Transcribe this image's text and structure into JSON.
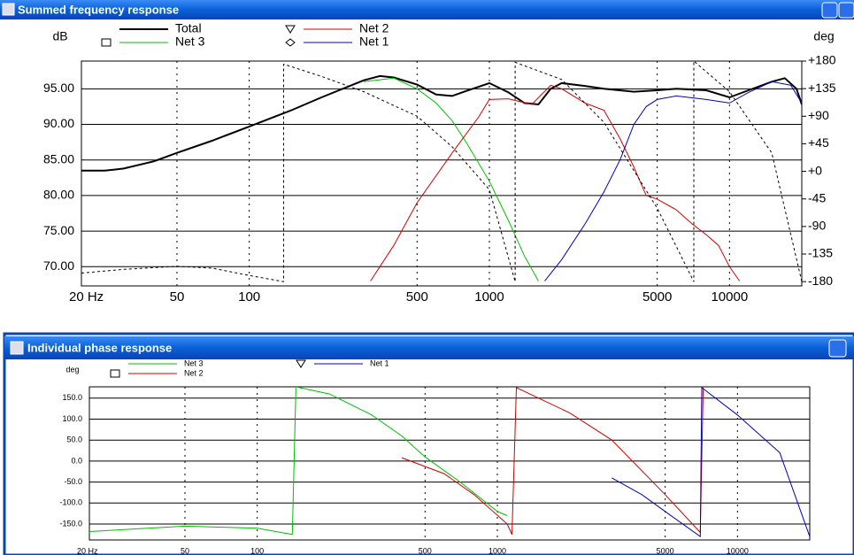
{
  "chart_data": [
    {
      "type": "line",
      "title": "Summed frequency response",
      "y_label": "dB",
      "y2_label": "deg",
      "x_scale": "log",
      "grid": true,
      "xlim": [
        20,
        20000
      ],
      "xticks": [
        {
          "value": 20,
          "label": "20 Hz"
        },
        50,
        100,
        500,
        1000,
        5000,
        10000
      ],
      "ylim": [
        67.3,
        98.9
      ],
      "yticks": [
        {
          "value": 70,
          "label": "70.00"
        },
        {
          "value": 75,
          "label": "75.00"
        },
        {
          "value": 80,
          "label": "80.00"
        },
        {
          "value": 85,
          "label": "85.00"
        },
        {
          "value": 90,
          "label": "90.00"
        },
        {
          "value": 95,
          "label": "95.00"
        }
      ],
      "y2lim": [
        -187,
        180
      ],
      "y2ticks": [
        {
          "value": 180,
          "label": "+180"
        },
        {
          "value": 135,
          "label": "+135"
        },
        {
          "value": 90,
          "label": "+90"
        },
        {
          "value": 45,
          "label": "+45"
        },
        {
          "value": 0,
          "label": "+0"
        },
        -45,
        -90,
        -135,
        -180
      ],
      "series": [
        {
          "name": "Total",
          "color": "#000000",
          "width": 2,
          "x": [
            20,
            25,
            30,
            40,
            50,
            70,
            100,
            150,
            200,
            300,
            350,
            400,
            500,
            600,
            700,
            800,
            1000,
            1200,
            1400,
            1600,
            1800,
            2000,
            2500,
            3000,
            4000,
            5000,
            6000,
            8000,
            10000,
            12000,
            15000,
            17000,
            19000,
            20000
          ],
          "values": [
            83.5,
            83.5,
            83.8,
            84.8,
            86,
            87.7,
            89.7,
            92,
            93.8,
            96.2,
            96.8,
            96.6,
            95.6,
            94.2,
            94,
            94.7,
            95.8,
            94.5,
            93,
            92.8,
            95,
            95.8,
            95.4,
            95,
            94.6,
            94.8,
            95,
            94.8,
            93.8,
            94.8,
            96,
            96.5,
            95,
            92.8
          ]
        },
        {
          "name": "Net 3",
          "color": "#00c000",
          "marker": "square",
          "x": [
            300,
            400,
            500,
            600,
            700,
            800,
            1000,
            1200,
            1400,
            1600
          ],
          "values": [
            96,
            96.5,
            95,
            93,
            90.5,
            87.5,
            82,
            76.5,
            71.5,
            68
          ]
        },
        {
          "name": "Net 2",
          "color": "#d00000",
          "marker": "triangle",
          "x": [
            320,
            400,
            500,
            700,
            900,
            1000,
            1200,
            1500,
            1800,
            2000,
            2500,
            3000,
            3500,
            4000,
            4500,
            5000,
            6000,
            7000,
            8000,
            9000,
            10000,
            11000
          ],
          "values": [
            68,
            73,
            79,
            86,
            91,
            93.5,
            93.6,
            92.8,
            95.5,
            95,
            93,
            92,
            88,
            84,
            80,
            79.5,
            78,
            76,
            74.5,
            73,
            70,
            68
          ]
        },
        {
          "name": "Net 1",
          "color": "#0000c0",
          "marker": "diamond",
          "x": [
            1700,
            2000,
            2500,
            3000,
            3500,
            4000,
            4500,
            5000,
            6000,
            8000,
            10000,
            12000,
            15000,
            18000,
            20000
          ],
          "values": [
            68,
            71,
            76,
            80.5,
            85,
            90,
            92.5,
            93.5,
            94,
            93.5,
            93,
            94.5,
            96,
            95.5,
            93
          ]
        },
        {
          "color": "#000000",
          "dashed": true,
          "axis": "y2",
          "x": [
            20,
            30,
            50,
            70,
            100,
            139,
            139,
            200,
            300,
            500,
            700,
            1000,
            1280,
            1280,
            2000,
            3000,
            5000,
            7100,
            7100,
            10000,
            15000,
            20000
          ],
          "values": [
            -166,
            -160,
            -155,
            -158,
            -170,
            -180,
            175,
            155,
            130,
            90,
            40,
            -30,
            -180,
            178,
            150,
            80,
            -60,
            -180,
            180,
            130,
            30,
            -180
          ]
        }
      ]
    },
    {
      "type": "line",
      "title": "Individual phase response",
      "y_label": "deg",
      "x_scale": "log",
      "grid": true,
      "xlim": [
        20,
        20000
      ],
      "xticks": [
        {
          "value": 20,
          "label": "20 Hz"
        },
        50,
        100,
        500,
        1000,
        5000,
        10000
      ],
      "ylim": [
        -188,
        177
      ],
      "yticks": [
        {
          "value": 150,
          "label": "150.0"
        },
        {
          "value": 100,
          "label": "100.0"
        },
        {
          "value": 50,
          "label": "50.0"
        },
        {
          "value": 0,
          "label": "0.0"
        },
        {
          "value": -50,
          "label": "-50.0"
        },
        {
          "value": -100,
          "label": "-100.0"
        },
        {
          "value": -150,
          "label": "-150.0"
        }
      ],
      "series": [
        {
          "name": "Net 3",
          "color": "#00c000",
          "x": [
            20,
            50,
            100,
            140,
            145,
            200,
            300,
            400,
            500,
            700,
            1000,
            1100
          ],
          "values": [
            -168,
            -155,
            -160,
            -175,
            177,
            160,
            110,
            60,
            10,
            -50,
            -120,
            -130
          ]
        },
        {
          "name": "Net 2",
          "color": "#d00000",
          "marker": "square",
          "x": [
            400,
            600,
            800,
            1100,
            1150,
            1200,
            2000,
            3000,
            5000,
            7000,
            7200
          ],
          "values": [
            8,
            -30,
            -80,
            -150,
            -175,
            175,
            115,
            50,
            -80,
            -170,
            175
          ]
        },
        {
          "name": "Net 1",
          "color": "#0000c0",
          "marker": "triangle",
          "x": [
            3000,
            4000,
            5000,
            7000,
            7100,
            10000,
            15000,
            20000
          ],
          "values": [
            -40,
            -80,
            -120,
            -180,
            175,
            110,
            20,
            -180
          ]
        }
      ]
    }
  ]
}
